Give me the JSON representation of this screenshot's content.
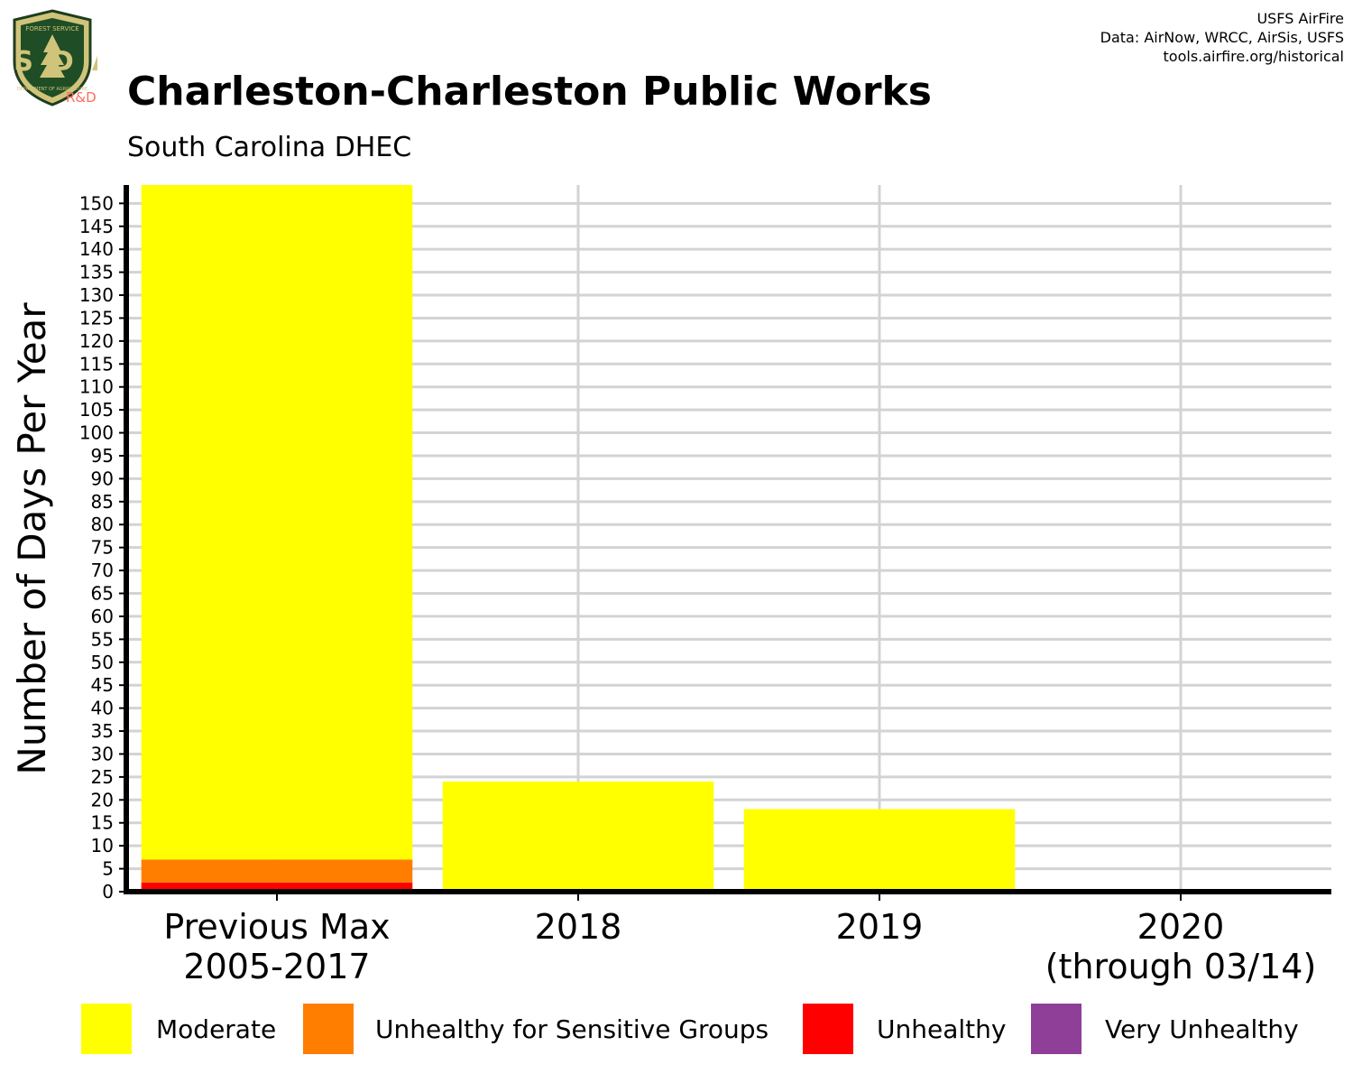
{
  "header": {
    "title": "Charleston-Charleston Public Works",
    "subtitle": "South Carolina DHEC",
    "credit_line1": "USFS AirFire",
    "credit_line2": "Data: AirNow, WRCC, AirSis, USFS",
    "credit_line3": "tools.airfire.org/historical"
  },
  "logo": {
    "top_text": "FOREST SERVICE",
    "letters": "USDA",
    "bottom_text": "DEPARTMENT OF AGRICULTURE",
    "rd_label": "R&D"
  },
  "chart_data": {
    "type": "bar",
    "stacked": true,
    "ylabel": "Number of Days Per Year",
    "xlabel": "",
    "ylim": [
      0,
      154
    ],
    "ytick_step": 5,
    "grid": true,
    "categories": [
      "Previous Max\n2005-2017",
      "2018",
      "2019",
      "2020\n(through 03/14)"
    ],
    "series": [
      {
        "name": "Unhealthy",
        "color": "#ff0000",
        "values": [
          2,
          0,
          0,
          0
        ]
      },
      {
        "name": "Unhealthy for Sensitive Groups",
        "color": "#ff7e00",
        "values": [
          5,
          0,
          0,
          0
        ]
      },
      {
        "name": "Moderate",
        "color": "#ffff00",
        "values": [
          147,
          24,
          18,
          0
        ]
      },
      {
        "name": "Very Unhealthy",
        "color": "#8f3f97",
        "values": [
          0,
          0,
          0,
          0
        ]
      }
    ],
    "legend": {
      "position": "bottom",
      "order": [
        "Moderate",
        "Unhealthy for Sensitive Groups",
        "Unhealthy",
        "Very Unhealthy"
      ]
    }
  }
}
